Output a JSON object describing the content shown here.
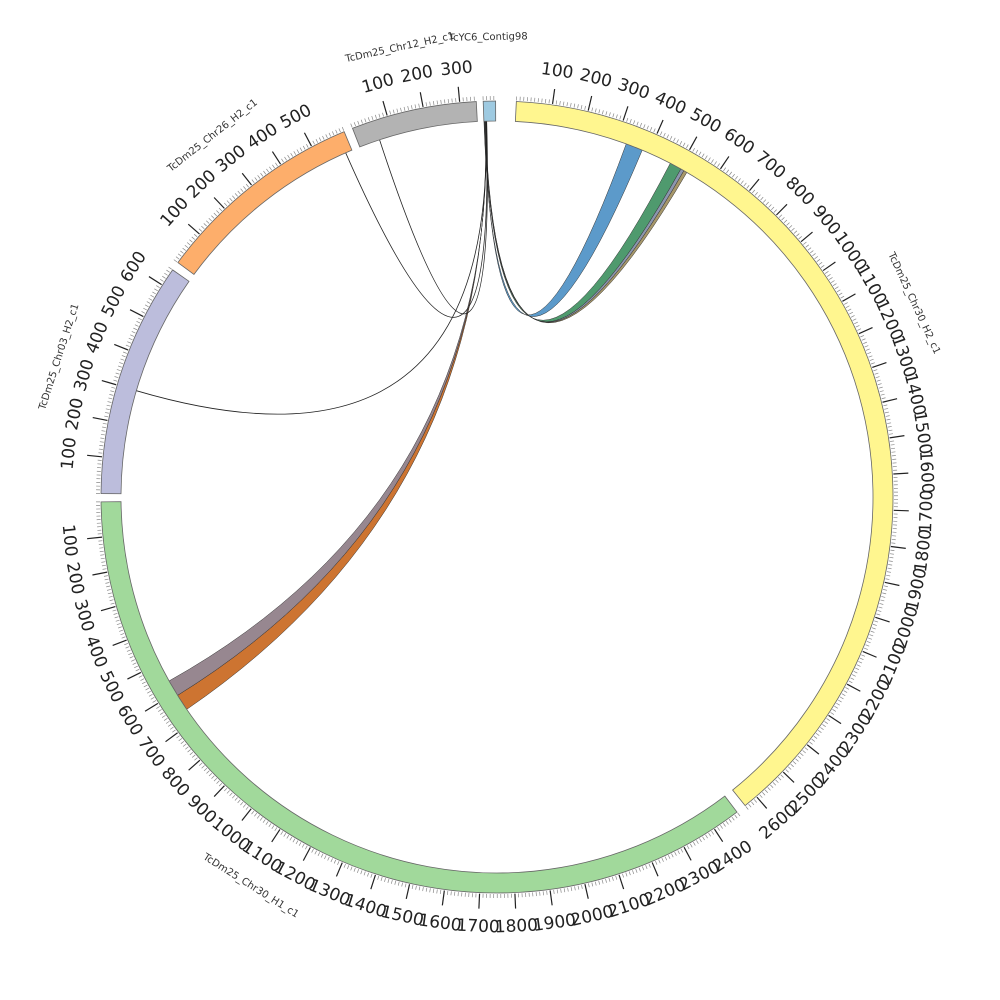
{
  "chart_data": {
    "type": "circos",
    "title": "",
    "segments": [
      {
        "name": "TcDm25_Chr30_H2_c1",
        "length": 2640,
        "color": "#FFF68F",
        "ticks": [
          100,
          200,
          300,
          400,
          500,
          600,
          700,
          800,
          900,
          1000,
          1100,
          1200,
          1300,
          1400,
          1500,
          1600,
          1700,
          1800,
          1900,
          2000,
          2100,
          2200,
          2300,
          2400,
          2500,
          2600
        ]
      },
      {
        "name": "TcDm25_Chr30_H1_c1",
        "length": 2480,
        "color": "#A1D99B",
        "ticks": [
          100,
          200,
          300,
          400,
          500,
          600,
          700,
          800,
          900,
          1000,
          1100,
          1200,
          1300,
          1400,
          1500,
          1600,
          1700,
          1800,
          1900,
          2000,
          2100,
          2200,
          2300,
          2400
        ]
      },
      {
        "name": "TcDm25_Chr03_H2_c1",
        "length": 650,
        "color": "#BCBDDC",
        "ticks": [
          100,
          200,
          300,
          400,
          500,
          600
        ]
      },
      {
        "name": "TcDm25_Chr26_H2_c1",
        "length": 600,
        "color": "#FDAE6B",
        "ticks": [
          100,
          200,
          300,
          400,
          500
        ]
      },
      {
        "name": "TcDm25_Chr12_H2_c1",
        "length": 345,
        "color": "#B3B3B3",
        "ticks": [
          100,
          200,
          300
        ]
      },
      {
        "name": "TcYC6_Contig98",
        "length": 35,
        "color": "#9ECAE1",
        "ticks": []
      }
    ],
    "links": [
      {
        "source": "TcYC6_Contig98",
        "target": "TcDm25_Chr30_H2_c1",
        "target_range": [
          330,
          380
        ],
        "color": "#4A8FC4"
      },
      {
        "source": "TcYC6_Contig98",
        "target": "TcDm25_Chr30_H2_c1",
        "target_range": [
          470,
          505
        ],
        "color": "#3C8F5E"
      },
      {
        "source": "TcYC6_Contig98",
        "target": "TcDm25_Chr30_H2_c1",
        "target_range": [
          505,
          515
        ],
        "color": "#7F8BA6"
      },
      {
        "source": "TcYC6_Contig98",
        "target": "TcDm25_Chr30_H2_c1",
        "target_range": [
          515,
          525
        ],
        "color": "#9C8C5A"
      },
      {
        "source": "TcYC6_Contig98",
        "target": "TcDm25_Chr30_H1_c1",
        "target_range": [
          610,
          660
        ],
        "color": "#C8651B"
      },
      {
        "source": "TcYC6_Contig98",
        "target": "TcDm25_Chr30_H1_c1",
        "target_range": [
          560,
          610
        ],
        "color": "#8C7A84"
      },
      {
        "source": "TcYC6_Contig98",
        "target": "TcDm25_Chr03_H2_c1",
        "target_range": [
          300,
          302
        ],
        "color": "#222222"
      },
      {
        "source": "TcYC6_Contig98",
        "target": "TcDm25_Chr26_H2_c1",
        "target_range": [
          580,
          582
        ],
        "color": "#222222"
      },
      {
        "source": "TcYC6_Contig98",
        "target": "TcDm25_Chr12_H2_c1",
        "target_range": [
          60,
          62
        ],
        "color": "#222222"
      }
    ]
  }
}
